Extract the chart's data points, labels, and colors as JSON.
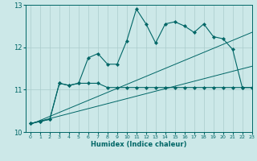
{
  "title": "",
  "xlabel": "Humidex (Indice chaleur)",
  "ylabel": "",
  "bg_color": "#cce8e8",
  "grid_color": "#aacccc",
  "line_color": "#006666",
  "xlim": [
    -0.5,
    23
  ],
  "ylim": [
    10,
    13
  ],
  "yticks": [
    10,
    11,
    12,
    13
  ],
  "xticks": [
    0,
    1,
    2,
    3,
    4,
    5,
    6,
    7,
    8,
    9,
    10,
    11,
    12,
    13,
    14,
    15,
    16,
    17,
    18,
    19,
    20,
    21,
    22,
    23
  ],
  "curve1_x": [
    0,
    1,
    2,
    3,
    4,
    5,
    6,
    7,
    8,
    9,
    10,
    11,
    12,
    13,
    14,
    15,
    16,
    17,
    18,
    19,
    20,
    21,
    22,
    23
  ],
  "curve1_y": [
    10.2,
    10.25,
    10.3,
    11.15,
    11.1,
    11.15,
    11.75,
    11.85,
    11.6,
    11.6,
    12.15,
    12.9,
    12.55,
    12.1,
    12.55,
    12.6,
    12.5,
    12.35,
    12.55,
    12.25,
    12.2,
    11.95,
    11.05,
    11.05
  ],
  "curve2_x": [
    0,
    1,
    2,
    3,
    4,
    5,
    6,
    7,
    8,
    9,
    10,
    11,
    12,
    13,
    14,
    15,
    16,
    17,
    18,
    19,
    20,
    21,
    22,
    23
  ],
  "curve2_y": [
    10.2,
    10.25,
    10.3,
    11.15,
    11.1,
    11.15,
    11.15,
    11.15,
    11.05,
    11.05,
    11.05,
    11.05,
    11.05,
    11.05,
    11.05,
    11.05,
    11.05,
    11.05,
    11.05,
    11.05,
    11.05,
    11.05,
    11.05,
    11.05
  ],
  "regline1_x": [
    0,
    23
  ],
  "regline1_y": [
    10.2,
    11.55
  ],
  "regline2_x": [
    0,
    23
  ],
  "regline2_y": [
    10.18,
    12.35
  ]
}
